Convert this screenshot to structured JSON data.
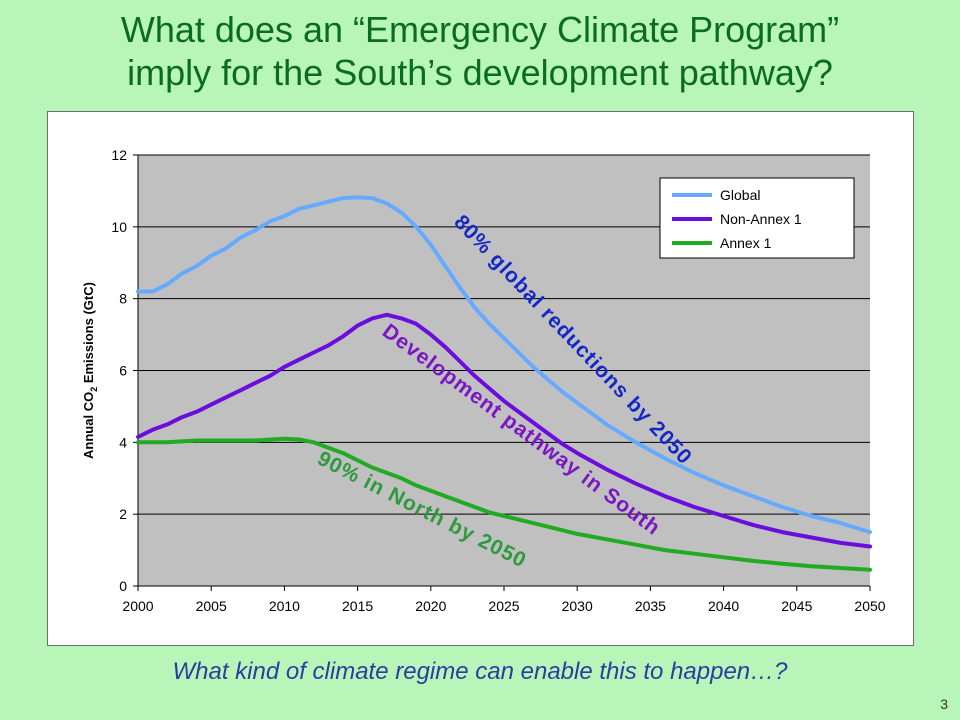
{
  "slide": {
    "title_line1": "What does an “Emergency Climate Program”",
    "title_line2": "imply for the South’s development pathway?",
    "question": "What kind of climate regime can enable this to happen…?",
    "slide_number": "3"
  },
  "chart_data": {
    "type": "line",
    "title": "",
    "xlabel": "",
    "ylabel_parts": [
      "Annual CO",
      "2",
      " Emissions (GtC)"
    ],
    "xlim": [
      2000,
      2050
    ],
    "ylim": [
      0,
      12
    ],
    "x_ticks": [
      2000,
      2005,
      2010,
      2015,
      2020,
      2025,
      2030,
      2035,
      2040,
      2045,
      2050
    ],
    "y_ticks": [
      0,
      2,
      4,
      6,
      8,
      10,
      12
    ],
    "grid": "horizontal",
    "legend_position": "top-right",
    "plot_background": "#c0c0c0",
    "series": [
      {
        "name": "Global",
        "color": "#66aaff",
        "x": [
          2000,
          2001,
          2002,
          2003,
          2004,
          2005,
          2006,
          2007,
          2008,
          2009,
          2010,
          2011,
          2012,
          2013,
          2014,
          2015,
          2016,
          2017,
          2018,
          2019,
          2020,
          2021,
          2022,
          2023,
          2024,
          2025,
          2026,
          2027,
          2028,
          2029,
          2030,
          2032,
          2034,
          2036,
          2038,
          2040,
          2042,
          2044,
          2046,
          2048,
          2050
        ],
        "values": [
          8.2,
          8.2,
          8.4,
          8.7,
          8.9,
          9.2,
          9.4,
          9.7,
          9.9,
          10.15,
          10.3,
          10.5,
          10.6,
          10.7,
          10.8,
          10.82,
          10.8,
          10.65,
          10.4,
          10.0,
          9.5,
          8.9,
          8.3,
          7.75,
          7.3,
          6.9,
          6.5,
          6.1,
          5.75,
          5.4,
          5.1,
          4.5,
          4.0,
          3.55,
          3.15,
          2.8,
          2.5,
          2.2,
          1.95,
          1.75,
          1.5
        ]
      },
      {
        "name": "Non-Annex 1",
        "color": "#6a0ddd",
        "x": [
          2000,
          2001,
          2002,
          2003,
          2004,
          2005,
          2006,
          2007,
          2008,
          2009,
          2010,
          2011,
          2012,
          2013,
          2014,
          2015,
          2016,
          2017,
          2018,
          2019,
          2020,
          2021,
          2022,
          2023,
          2024,
          2025,
          2026,
          2027,
          2028,
          2029,
          2030,
          2032,
          2034,
          2036,
          2038,
          2040,
          2042,
          2044,
          2046,
          2048,
          2050
        ],
        "values": [
          4.15,
          4.35,
          4.5,
          4.7,
          4.85,
          5.05,
          5.25,
          5.45,
          5.65,
          5.85,
          6.1,
          6.3,
          6.5,
          6.7,
          6.95,
          7.25,
          7.45,
          7.55,
          7.45,
          7.3,
          7.0,
          6.65,
          6.25,
          5.85,
          5.5,
          5.15,
          4.85,
          4.55,
          4.25,
          3.95,
          3.7,
          3.25,
          2.85,
          2.5,
          2.2,
          1.95,
          1.7,
          1.5,
          1.35,
          1.2,
          1.1
        ]
      },
      {
        "name": "Annex 1",
        "color": "#22aa22",
        "x": [
          2000,
          2002,
          2004,
          2006,
          2008,
          2010,
          2011,
          2012,
          2013,
          2014,
          2015,
          2016,
          2017,
          2018,
          2019,
          2020,
          2021,
          2022,
          2023,
          2024,
          2025,
          2026,
          2027,
          2028,
          2029,
          2030,
          2032,
          2034,
          2036,
          2038,
          2040,
          2042,
          2044,
          2046,
          2048,
          2050
        ],
        "values": [
          4.0,
          4.0,
          4.05,
          4.05,
          4.05,
          4.1,
          4.08,
          4.0,
          3.85,
          3.7,
          3.5,
          3.3,
          3.15,
          3.0,
          2.8,
          2.65,
          2.5,
          2.35,
          2.2,
          2.05,
          1.95,
          1.85,
          1.75,
          1.65,
          1.55,
          1.45,
          1.3,
          1.15,
          1.0,
          0.9,
          0.8,
          0.7,
          0.62,
          0.55,
          0.5,
          0.45
        ]
      }
    ],
    "annotations": [
      {
        "text": "80% global reductions by 2050",
        "color": "#1428c8"
      },
      {
        "text": "Development pathway in South",
        "color": "#7a16c4"
      },
      {
        "text": "90% in North by 2050",
        "color": "#2e9a3e"
      }
    ]
  }
}
